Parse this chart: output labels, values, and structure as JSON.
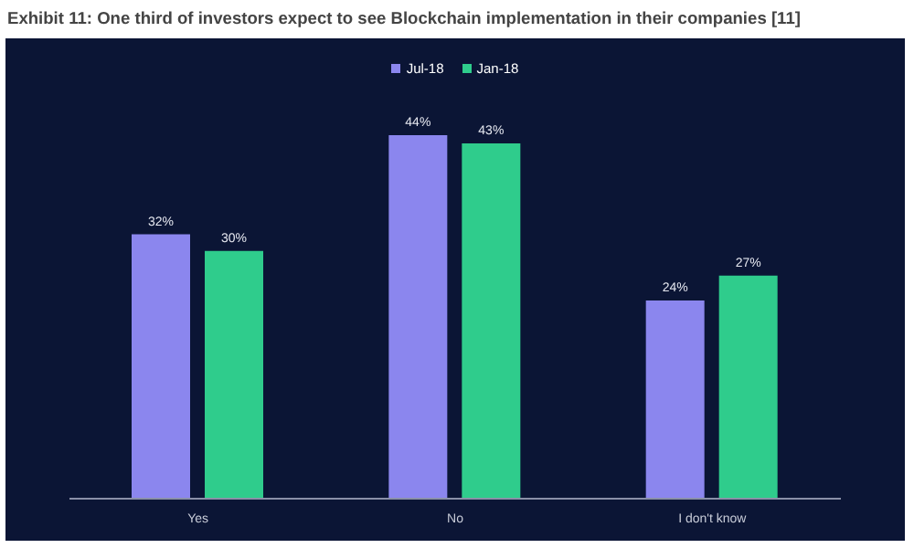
{
  "chart_data": {
    "type": "bar",
    "title": "Exhibit 11: One third of investors expect to see Blockchain implementation in their companies [11]",
    "categories": [
      "Yes",
      "No",
      "I don't know"
    ],
    "series": [
      {
        "name": "Jul-18",
        "color": "#8b86ee",
        "values": [
          32,
          44,
          24
        ],
        "value_labels": [
          "32%",
          "44%",
          "24%"
        ]
      },
      {
        "name": "Jan-18",
        "color": "#2fcc8c",
        "values": [
          30,
          43,
          27
        ],
        "value_labels": [
          "30%",
          "43%",
          "27%"
        ]
      }
    ],
    "legend": "top"
  }
}
